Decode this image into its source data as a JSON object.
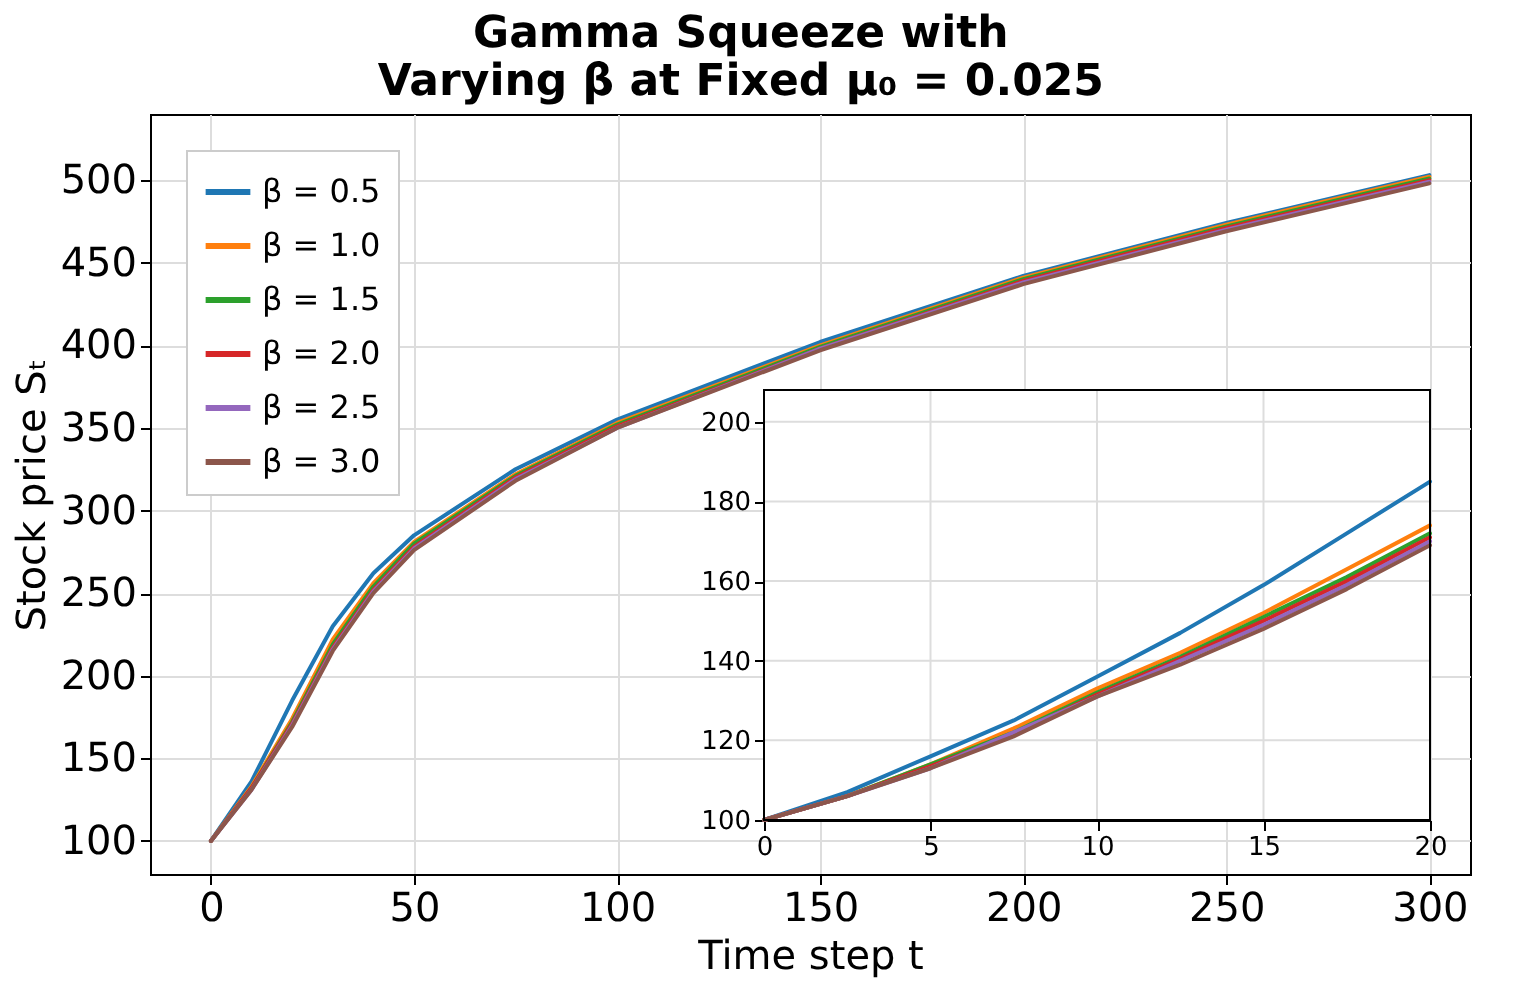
{
  "chart_data": [
    {
      "type": "line",
      "title": "Gamma Squeeze with\nVarying β at Fixed μ₀ = 0.025",
      "xlabel": "Time step t",
      "ylabel": "Stock price Sₜ",
      "x": [
        0,
        10,
        20,
        30,
        40,
        50,
        75,
        100,
        150,
        200,
        250,
        300
      ],
      "series": [
        {
          "name": "β = 0.5",
          "color": "#1f77b4",
          "values": [
            100,
            136,
            185,
            230,
            262,
            285,
            325,
            355,
            402,
            442,
            474,
            503
          ]
        },
        {
          "name": "β = 1.0",
          "color": "#ff7f0e",
          "values": [
            100,
            133,
            174,
            222,
            256,
            281,
            322,
            353,
            400,
            441,
            473,
            502
          ]
        },
        {
          "name": "β = 1.5",
          "color": "#2ca02c",
          "values": [
            100,
            132,
            172,
            219,
            254,
            280,
            321,
            352,
            399,
            440,
            472,
            501
          ]
        },
        {
          "name": "β = 2.0",
          "color": "#d62728",
          "values": [
            100,
            132,
            171,
            217,
            252,
            278,
            320,
            351,
            398,
            439,
            471,
            500
          ]
        },
        {
          "name": "β = 2.5",
          "color": "#9467bd",
          "values": [
            100,
            131,
            170,
            216,
            251,
            277,
            319,
            350,
            398,
            438,
            470,
            499
          ]
        },
        {
          "name": "β = 3.0",
          "color": "#8c564b",
          "values": [
            100,
            131,
            169,
            215,
            250,
            276,
            318,
            350,
            397,
            437,
            469,
            498
          ]
        }
      ],
      "xlim": [
        -15,
        310
      ],
      "ylim": [
        80,
        540
      ],
      "xticks": [
        0,
        50,
        100,
        150,
        200,
        250,
        300
      ],
      "yticks": [
        100,
        150,
        200,
        250,
        300,
        350,
        400,
        450,
        500
      ],
      "grid": true,
      "legend": "top left"
    },
    {
      "type": "line",
      "x": [
        0,
        2.5,
        5,
        7.5,
        10,
        12.5,
        15,
        17.5,
        20
      ],
      "series": [
        {
          "color": "#1f77b4",
          "values": [
            100,
            107,
            116,
            125,
            136,
            147,
            159,
            172,
            185
          ]
        },
        {
          "color": "#ff7f0e",
          "values": [
            100,
            106,
            114,
            123,
            133,
            142,
            152,
            163,
            174
          ]
        },
        {
          "color": "#2ca02c",
          "values": [
            100,
            106,
            114,
            122,
            132,
            141,
            151,
            161,
            172
          ]
        },
        {
          "color": "#d62728",
          "values": [
            100,
            106,
            113.5,
            121.5,
            131.5,
            140.5,
            150,
            160,
            171
          ]
        },
        {
          "color": "#9467bd",
          "values": [
            100,
            106,
            113,
            122,
            131,
            140,
            149,
            159,
            170
          ]
        },
        {
          "color": "#8c564b",
          "values": [
            100,
            106,
            113,
            121,
            131,
            139,
            148,
            158,
            169
          ]
        }
      ],
      "xlim": [
        0,
        20
      ],
      "ylim": [
        100,
        208
      ],
      "xticks": [
        0,
        5,
        10,
        15,
        20
      ],
      "yticks": [
        100,
        120,
        140,
        160,
        180,
        200
      ],
      "grid": true
    }
  ]
}
